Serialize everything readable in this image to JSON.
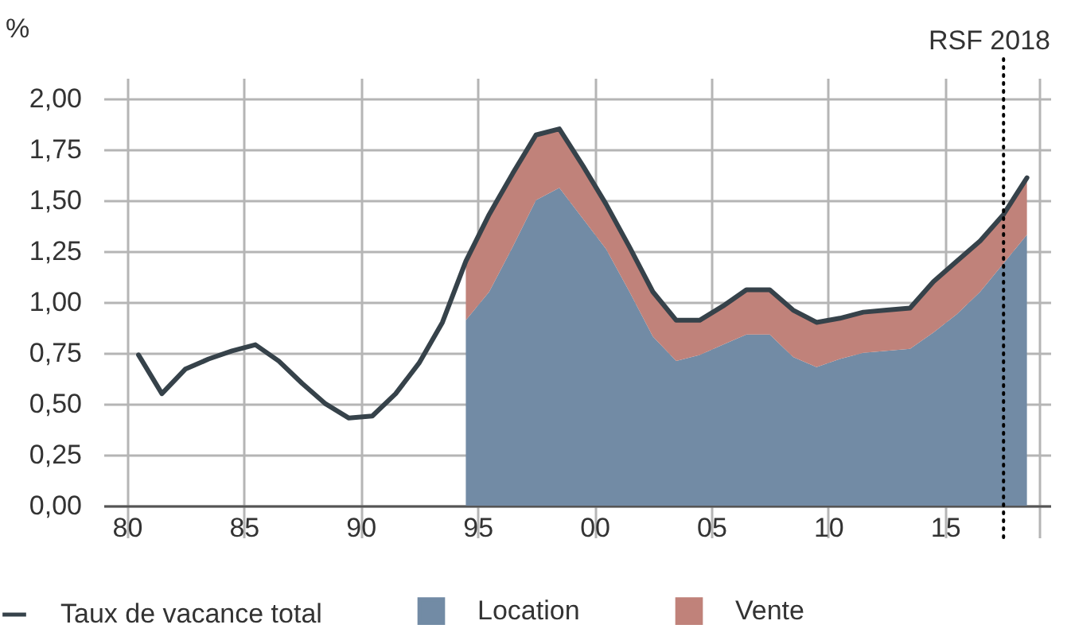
{
  "chart_data": {
    "type": "area",
    "stacked": true,
    "ylabel": "%",
    "annotations": [
      "RSF 2018"
    ],
    "xlim": [
      1979,
      2019.5
    ],
    "xticks": [
      {
        "value": 1980,
        "label": "80"
      },
      {
        "value": 1985,
        "label": "85"
      },
      {
        "value": 1990,
        "label": "90"
      },
      {
        "value": 1995,
        "label": "95"
      },
      {
        "value": 2000,
        "label": "00"
      },
      {
        "value": 2005,
        "label": "05"
      },
      {
        "value": 2010,
        "label": "10"
      },
      {
        "value": 2015,
        "label": "15"
      },
      {
        "value": 2019,
        "label": null
      }
    ],
    "ylim": [
      0,
      2.1
    ],
    "yticks": [
      {
        "value": 0,
        "label": "0,00"
      },
      {
        "value": 0.25,
        "label": "0,25"
      },
      {
        "value": 0.5,
        "label": "0,50"
      },
      {
        "value": 0.75,
        "label": "0,75"
      },
      {
        "value": 1,
        "label": "1,00"
      },
      {
        "value": 1.25,
        "label": "1,25"
      },
      {
        "value": 1.5,
        "label": "1,50"
      },
      {
        "value": 1.75,
        "label": "1,75"
      },
      {
        "value": 2,
        "label": "2,00"
      }
    ],
    "grid": true,
    "legend": "bottom",
    "ref_lines": [
      {
        "axis": "x",
        "value": 2017.5,
        "line_style": "dotted",
        "color": "#000000"
      }
    ],
    "series": [
      {
        "name": "Location",
        "color": "#728ba5",
        "x": [
          1994.5,
          1995.5,
          1996.5,
          1997.5,
          1998.5,
          1999.5,
          2000.5,
          2001.5,
          2002.5,
          2003.5,
          2004.5,
          2005.5,
          2006.5,
          2007.5,
          2008.5,
          2009.5,
          2010.5,
          2011.5,
          2012.5,
          2013.5,
          2014.5,
          2015.5,
          2016.5,
          2017.5,
          2018.5
        ],
        "values": [
          0.91,
          1.05,
          1.27,
          1.5,
          1.56,
          1.41,
          1.26,
          1.05,
          0.83,
          0.71,
          0.74,
          0.79,
          0.84,
          0.84,
          0.73,
          0.68,
          0.72,
          0.75,
          0.76,
          0.77,
          0.85,
          0.94,
          1.05,
          1.19,
          1.33
        ]
      },
      {
        "name": "Vente",
        "color": "#c0827a",
        "x": [
          1994.5,
          1995.5,
          1996.5,
          1997.5,
          1998.5,
          1999.5,
          2000.5,
          2001.5,
          2002.5,
          2003.5,
          2004.5,
          2005.5,
          2006.5,
          2007.5,
          2008.5,
          2009.5,
          2010.5,
          2011.5,
          2012.5,
          2013.5,
          2014.5,
          2015.5,
          2016.5,
          2017.5,
          2018.5
        ],
        "values": [
          0.29,
          0.38,
          0.36,
          0.32,
          0.29,
          0.26,
          0.22,
          0.22,
          0.22,
          0.2,
          0.17,
          0.19,
          0.22,
          0.22,
          0.23,
          0.22,
          0.2,
          0.2,
          0.2,
          0.2,
          0.25,
          0.26,
          0.25,
          0.24,
          0.28
        ]
      },
      {
        "name": "Taux de vacance total",
        "type": "line",
        "color": "#36424a",
        "x": [
          1980.5,
          1981.5,
          1982.5,
          1983.5,
          1984.5,
          1985.5,
          1986.5,
          1987.5,
          1988.5,
          1989.5,
          1990.5,
          1991.5,
          1992.5,
          1993.5,
          1994.5,
          1995.5,
          1996.5,
          1997.5,
          1998.5,
          1999.5,
          2000.5,
          2001.5,
          2002.5,
          2003.5,
          2004.5,
          2005.5,
          2006.5,
          2007.5,
          2008.5,
          2009.5,
          2010.5,
          2011.5,
          2012.5,
          2013.5,
          2014.5,
          2015.5,
          2016.5,
          2017.5,
          2018.5
        ],
        "values": [
          0.74,
          0.55,
          0.67,
          0.72,
          0.76,
          0.79,
          0.71,
          0.6,
          0.5,
          0.43,
          0.44,
          0.55,
          0.7,
          0.9,
          1.2,
          1.43,
          1.63,
          1.82,
          1.85,
          1.67,
          1.48,
          1.27,
          1.05,
          0.91,
          0.91,
          0.98,
          1.06,
          1.06,
          0.96,
          0.9,
          0.92,
          0.95,
          0.96,
          0.97,
          1.1,
          1.2,
          1.3,
          1.43,
          1.61
        ]
      }
    ]
  }
}
